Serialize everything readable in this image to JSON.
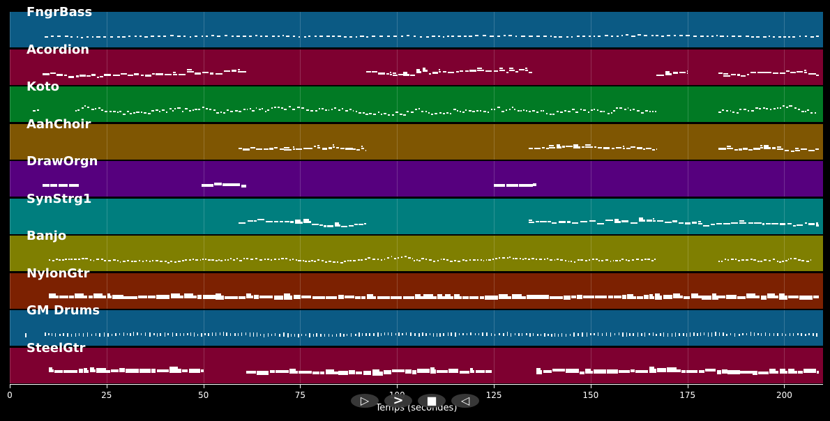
{
  "chart_data": {
    "type": "piano-roll",
    "xlabel": "Temps (secondes)",
    "xlim": [
      0,
      210
    ],
    "xticks": [
      0,
      25,
      50,
      75,
      100,
      125,
      150,
      175,
      200
    ],
    "tick_labels": [
      "0",
      "25",
      "50",
      "75",
      "100",
      "125",
      "150",
      "175",
      "200"
    ],
    "grid": true,
    "tracks": [
      {
        "name": "FngrBass",
        "color": "#0b5a84",
        "segments": [
          [
            9,
            209
          ]
        ],
        "pattern": "sparse",
        "spread": 0.3
      },
      {
        "name": "Acordion",
        "color": "#7e0030",
        "segments": [
          [
            8.5,
            61
          ],
          [
            92,
            135
          ],
          [
            167,
            175
          ],
          [
            183,
            209
          ]
        ],
        "pattern": "chunky",
        "spread": 0.9
      },
      {
        "name": "Koto",
        "color": "#017a24",
        "segments": [
          [
            6,
            7.5
          ],
          [
            17,
            167
          ],
          [
            183,
            208.5
          ]
        ],
        "pattern": "fine",
        "spread": 1.0
      },
      {
        "name": "AahChoir",
        "color": "#7f5602",
        "segments": [
          [
            59,
            92
          ],
          [
            134,
            167
          ],
          [
            183,
            209
          ]
        ],
        "pattern": "chunky",
        "spread": 0.6
      },
      {
        "name": "DrawOrgn",
        "color": "#56007e",
        "segments": [
          [
            8.5,
            18
          ],
          [
            49.5,
            61
          ],
          [
            125,
            136
          ]
        ],
        "pattern": "block",
        "spread": 0.5
      },
      {
        "name": "SynStrg1",
        "color": "#007e7e",
        "segments": [
          [
            59,
            92
          ],
          [
            134,
            209
          ]
        ],
        "pattern": "chunky",
        "spread": 0.9
      },
      {
        "name": "Banjo",
        "color": "#7f7f01",
        "segments": [
          [
            10,
            167
          ],
          [
            183,
            207
          ]
        ],
        "pattern": "fine",
        "spread": 0.6
      },
      {
        "name": "NylonGtr",
        "color": "#7c2101",
        "segments": [
          [
            10,
            209
          ]
        ],
        "pattern": "dense",
        "spread": 0.2
      },
      {
        "name": "GM Drums",
        "color": "#0b5a84",
        "segments": [
          [
            4,
            5
          ],
          [
            9,
            209
          ]
        ],
        "pattern": "drums",
        "spread": 0.2
      },
      {
        "name": "SteelGtr",
        "color": "#7e0030",
        "segments": [
          [
            10,
            50
          ],
          [
            61,
            124.5
          ],
          [
            136,
            209
          ]
        ],
        "pattern": "dense",
        "spread": 0.5
      }
    ]
  },
  "controls": [
    {
      "name": "play-button",
      "icon": "play-outline-icon",
      "glyph": "▷"
    },
    {
      "name": "forward-button",
      "icon": "fast-forward-icon",
      "glyph": ">"
    },
    {
      "name": "stop-button",
      "icon": "stop-icon",
      "glyph": "■"
    },
    {
      "name": "rewind-button",
      "icon": "rewind-icon",
      "glyph": "◁"
    }
  ]
}
